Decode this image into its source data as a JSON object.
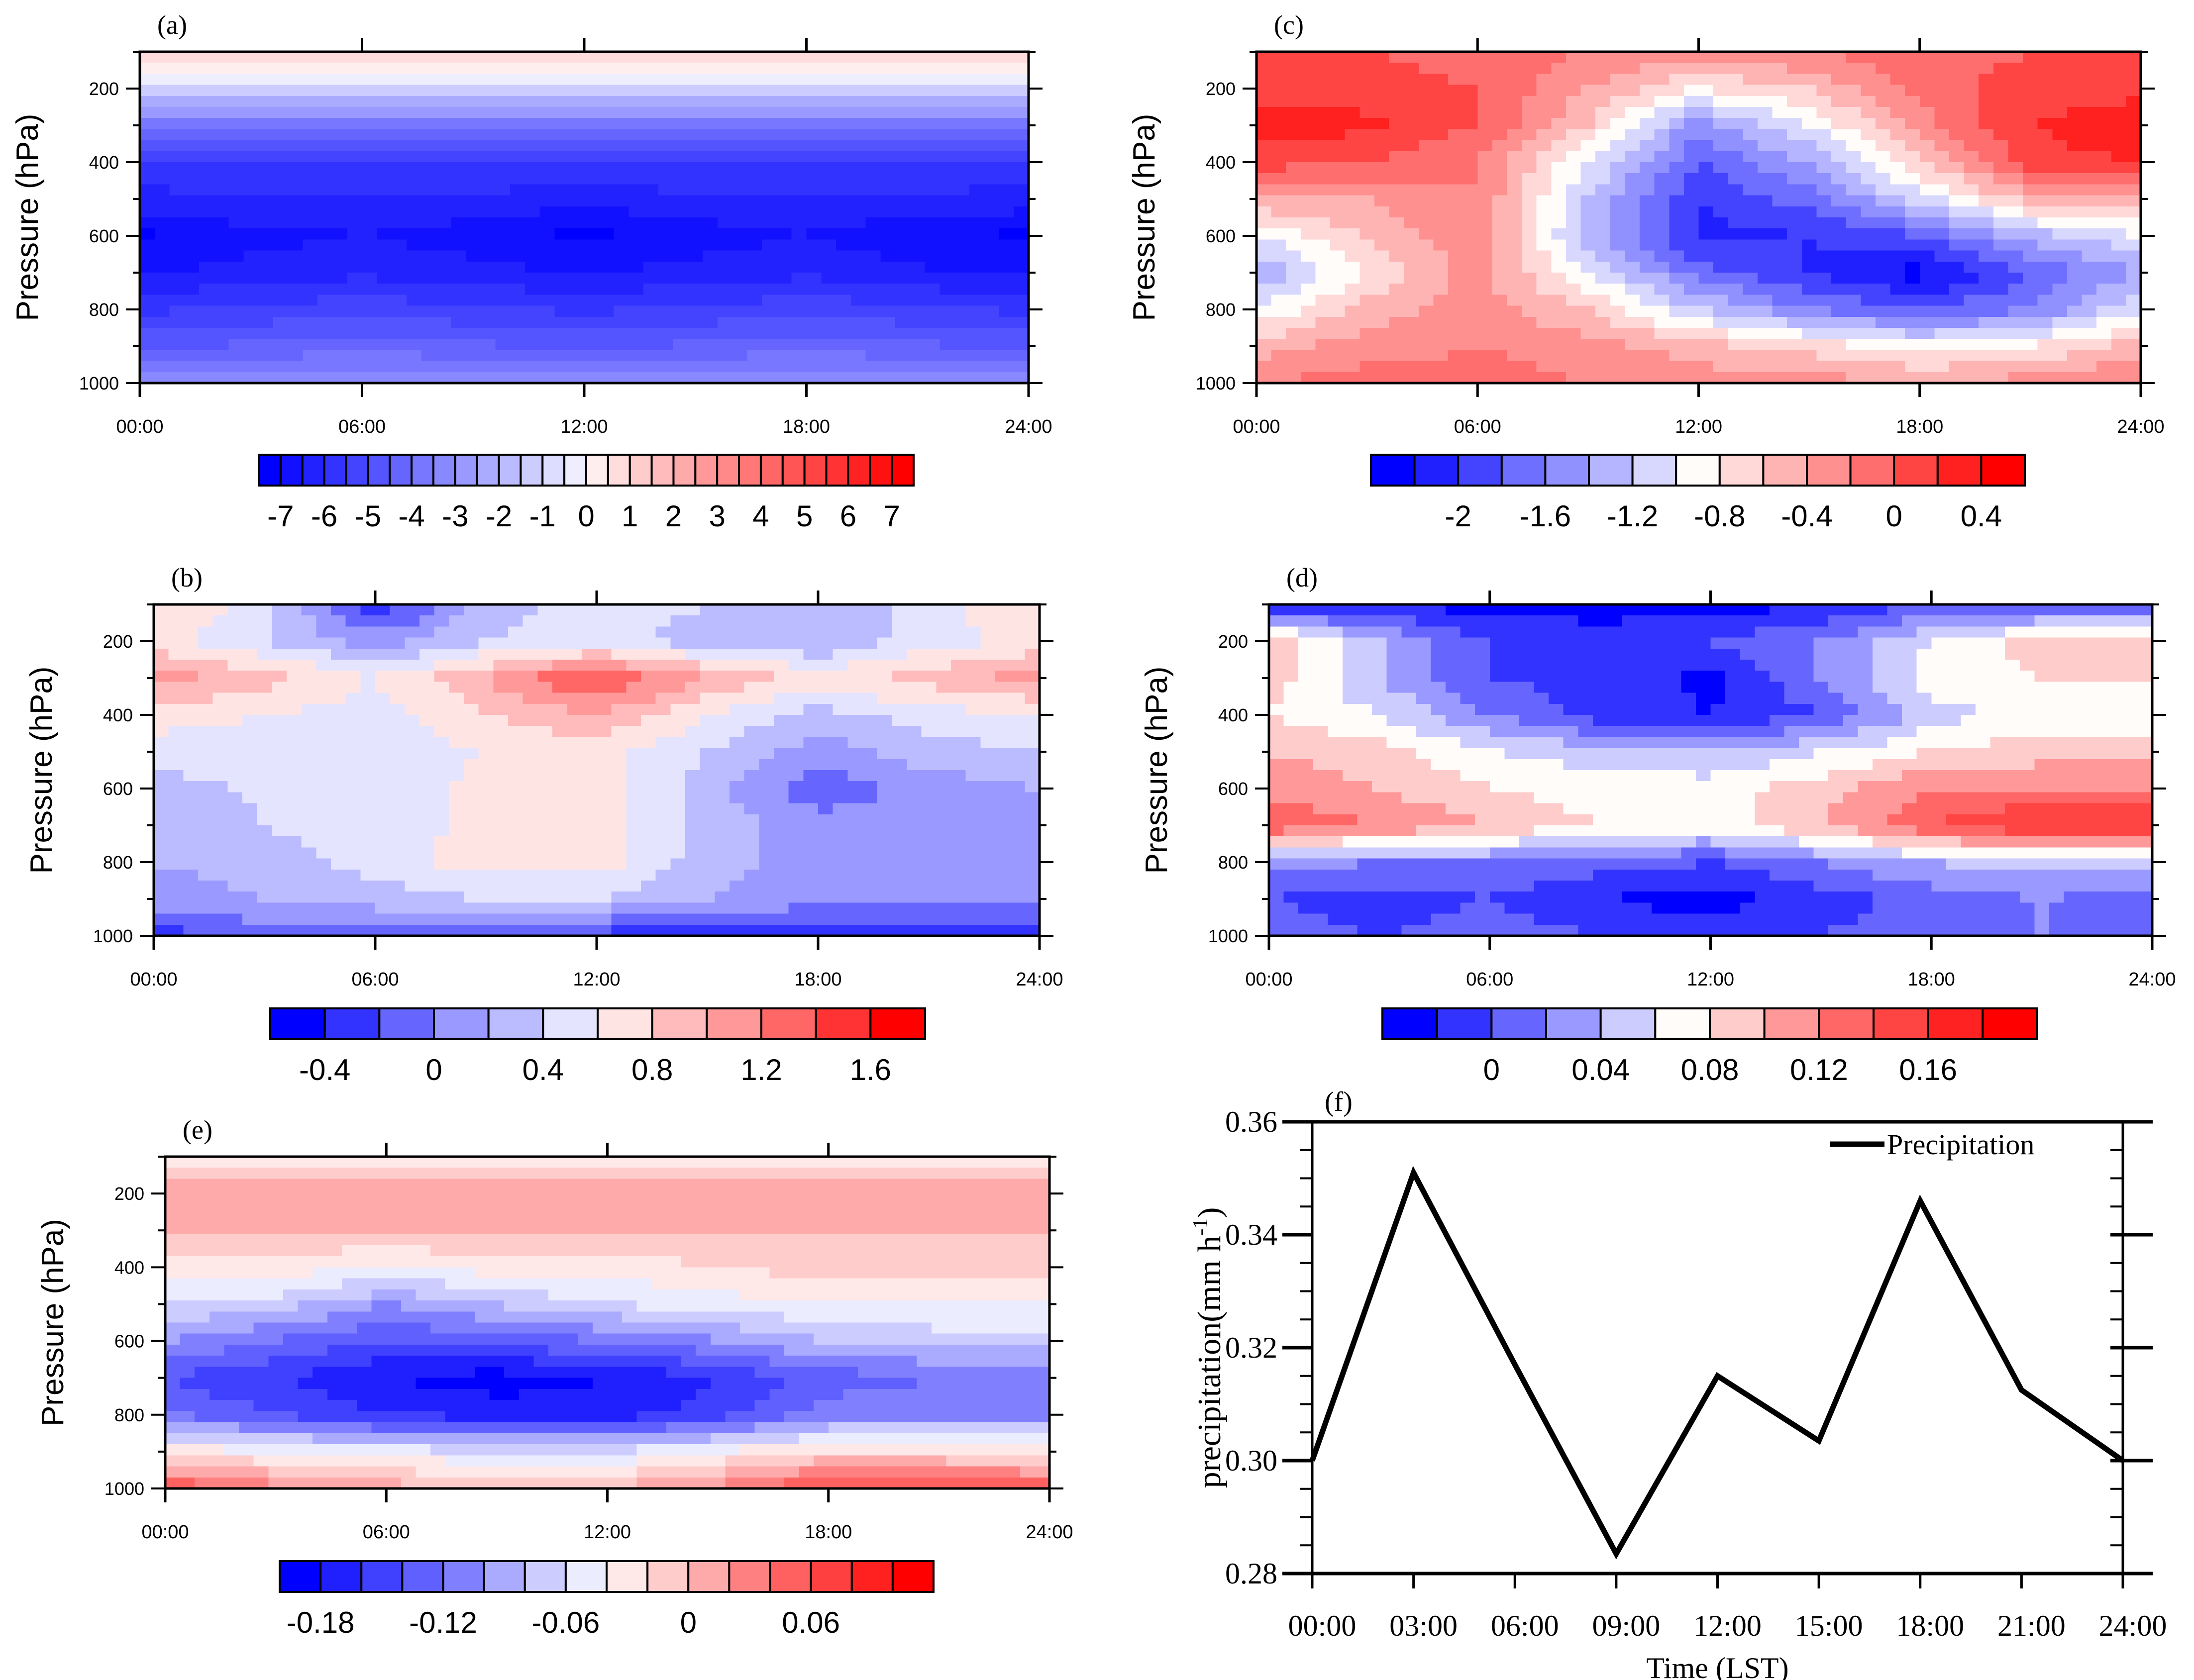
{
  "chart_data": [
    {
      "panel": "(a)",
      "type": "heatmap",
      "style": "filled-contour",
      "ylabel": "Pressure (hPa)",
      "xlabel": "",
      "x_hours": [
        0,
        3,
        6,
        9,
        12,
        15,
        18,
        21,
        24
      ],
      "y_pressure": [
        100,
        200,
        300,
        400,
        500,
        600,
        700,
        800,
        900,
        1000
      ],
      "ylim": [
        1000,
        100
      ],
      "xlim": [
        0,
        24
      ],
      "xtick_labels": [
        "00:00",
        "06:00",
        "12:00",
        "18:00",
        "24:00"
      ],
      "ytick_labels": [
        "200",
        "400",
        "600",
        "800",
        "1000"
      ],
      "values": [
        [
          1.0,
          1.0,
          1.0,
          1.0,
          1.0,
          1.0,
          1.0,
          1.0,
          1.0
        ],
        [
          -1.0,
          -1.0,
          -1.0,
          -1.0,
          -1.0,
          -1.0,
          -1.0,
          -1.0,
          -1.0
        ],
        [
          -4.0,
          -4.0,
          -4.0,
          -4.0,
          -4.0,
          -4.0,
          -4.0,
          -4.0,
          -4.0
        ],
        [
          -5.6,
          -5.5,
          -5.5,
          -5.5,
          -5.6,
          -5.5,
          -5.5,
          -5.5,
          -5.6
        ],
        [
          -6.2,
          -6.0,
          -6.0,
          -6.1,
          -6.3,
          -6.1,
          -6.0,
          -6.1,
          -6.2
        ],
        [
          -7.1,
          -6.7,
          -6.5,
          -6.8,
          -7.1,
          -6.8,
          -6.5,
          -6.9,
          -7.1
        ],
        [
          -6.6,
          -6.3,
          -6.1,
          -6.3,
          -6.6,
          -6.3,
          -6.1,
          -6.4,
          -6.6
        ],
        [
          -5.6,
          -5.4,
          -5.2,
          -5.4,
          -5.6,
          -5.4,
          -5.2,
          -5.4,
          -5.6
        ],
        [
          -4.6,
          -4.4,
          -4.2,
          -4.4,
          -4.6,
          -4.4,
          -4.2,
          -4.4,
          -4.6
        ],
        [
          -3.2,
          -3.1,
          -3.0,
          -3.1,
          -3.2,
          -3.1,
          -3.0,
          -3.1,
          -3.2
        ]
      ],
      "level_min": -7.5,
      "level_step": 0.5,
      "colors": [
        "#0000ff",
        "#1111ff",
        "#2222ff",
        "#3333ff",
        "#4444ff",
        "#5555ff",
        "#6666ff",
        "#7777ff",
        "#8888ff",
        "#9999ff",
        "#aaaaff",
        "#bbbbff",
        "#ccccff",
        "#ddddff",
        "#eeeeff",
        "#ffeeee",
        "#ffdddd",
        "#ffcccc",
        "#ffbbbb",
        "#ffaaaa",
        "#ff9999",
        "#ff8888",
        "#ff7777",
        "#ff6666",
        "#ff5555",
        "#ff4444",
        "#ff3333",
        "#ff2222",
        "#ff1111",
        "#ff0000"
      ],
      "colorbar_labels": [
        "-7",
        "-6",
        "-5",
        "-4",
        "-3",
        "-2",
        "-1",
        "0",
        "1",
        "2",
        "3",
        "4",
        "5",
        "6",
        "7"
      ]
    },
    {
      "panel": "(b)",
      "type": "heatmap",
      "style": "filled-contour",
      "ylabel": "Pressure (hPa)",
      "xlabel": "",
      "x_hours": [
        0,
        3,
        6,
        9,
        12,
        15,
        18,
        21,
        24
      ],
      "y_pressure": [
        100,
        200,
        300,
        400,
        500,
        600,
        700,
        800,
        900,
        1000
      ],
      "ylim": [
        1000,
        100
      ],
      "xlim": [
        0,
        24
      ],
      "xtick_labels": [
        "00:00",
        "06:00",
        "12:00",
        "18:00",
        "24:00"
      ],
      "ytick_labels": [
        "200",
        "400",
        "600",
        "800",
        "1000"
      ],
      "values": [
        [
          0.8,
          0.5,
          -0.4,
          0.3,
          0.5,
          0.4,
          0.2,
          0.5,
          0.8
        ],
        [
          0.7,
          0.4,
          0.1,
          0.4,
          0.5,
          0.3,
          0.2,
          0.5,
          0.7
        ],
        [
          1.1,
          0.9,
          0.6,
          1.0,
          1.45,
          1.0,
          0.7,
          0.9,
          1.1
        ],
        [
          0.7,
          0.6,
          0.5,
          0.8,
          1.0,
          0.6,
          0.3,
          0.5,
          0.6
        ],
        [
          0.5,
          0.5,
          0.5,
          0.6,
          0.7,
          0.4,
          0.1,
          0.3,
          0.4
        ],
        [
          0.3,
          0.45,
          0.5,
          0.65,
          0.7,
          0.3,
          -0.15,
          0.1,
          0.2
        ],
        [
          0.2,
          0.4,
          0.5,
          0.65,
          0.7,
          0.3,
          0.1,
          0.1,
          0.1
        ],
        [
          0.2,
          0.3,
          0.5,
          0.7,
          0.7,
          0.3,
          0.1,
          0.1,
          0.1
        ],
        [
          0.1,
          0.2,
          0.3,
          0.4,
          0.4,
          0.2,
          0.1,
          0.1,
          0.1
        ],
        [
          -0.3,
          -0.1,
          -0.1,
          -0.2,
          -0.3,
          -0.3,
          -0.4,
          -0.4,
          -0.4
        ]
      ],
      "level_min": -0.6,
      "level_step": 0.2,
      "colors": [
        "#0000ff",
        "#3333ff",
        "#6666ff",
        "#9999ff",
        "#bbbbff",
        "#e4e4ff",
        "#ffe4e4",
        "#ffbbbb",
        "#ff9999",
        "#ff6666",
        "#ff3333",
        "#ff0000"
      ],
      "colorbar_labels": [
        "-0.4",
        "0",
        "0.4",
        "0.8",
        "1.2",
        "1.6"
      ]
    },
    {
      "panel": "(c)",
      "type": "heatmap",
      "style": "filled-contour",
      "ylabel": "Pressure (hPa)",
      "xlabel": "",
      "x_hours": [
        0,
        3,
        6,
        9,
        12,
        15,
        18,
        21,
        24
      ],
      "y_pressure": [
        100,
        200,
        300,
        400,
        500,
        600,
        700,
        800,
        900,
        1000
      ],
      "ylim": [
        1000,
        100
      ],
      "xlim": [
        0,
        24
      ],
      "xtick_labels": [
        "00:00",
        "06:00",
        "12:00",
        "18:00",
        "24:00"
      ],
      "ytick_labels": [
        "200",
        "400",
        "600",
        "800",
        "1000"
      ],
      "values": [
        [
          0.0,
          0.0,
          -0.1,
          -0.2,
          -0.3,
          -0.2,
          -0.1,
          0.0,
          0.0
        ],
        [
          0.1,
          0.1,
          0.0,
          -0.4,
          -0.8,
          -0.6,
          -0.1,
          0.1,
          0.1
        ],
        [
          0.3,
          0.25,
          0.0,
          -0.6,
          -1.5,
          -1.0,
          -0.3,
          0.2,
          0.4
        ],
        [
          0.1,
          0.0,
          -0.2,
          -1.0,
          -1.8,
          -1.4,
          -0.6,
          0.1,
          0.2
        ],
        [
          -0.4,
          -0.4,
          -0.2,
          -1.2,
          -2.0,
          -1.7,
          -1.1,
          -0.5,
          -0.4
        ],
        [
          -1.0,
          -0.6,
          -0.2,
          -1.3,
          -2.05,
          -2.0,
          -1.8,
          -1.3,
          -1.0
        ],
        [
          -1.4,
          -0.8,
          -0.3,
          -1.0,
          -1.7,
          -2.0,
          -2.3,
          -1.8,
          -1.4
        ],
        [
          -1.0,
          -0.5,
          -0.3,
          -0.6,
          -1.2,
          -1.6,
          -1.8,
          -1.6,
          -1.0
        ],
        [
          -0.5,
          -0.3,
          -0.2,
          -0.3,
          -0.5,
          -0.7,
          -0.9,
          -0.8,
          -0.5
        ],
        [
          -0.2,
          -0.1,
          -0.1,
          -0.2,
          -0.3,
          -0.3,
          -0.4,
          -0.3,
          -0.2
        ]
      ],
      "level_min": -2.4,
      "level_step": 0.2,
      "colors": [
        "#0000ff",
        "#2020ff",
        "#4444ff",
        "#6e6eff",
        "#9090ff",
        "#b4b4ff",
        "#d8d8ff",
        "#fffcfa",
        "#ffd8d8",
        "#ffb4b4",
        "#ff9090",
        "#ff6e6e",
        "#ff4444",
        "#ff2020",
        "#ff0000"
      ],
      "colorbar_labels": [
        "-2",
        "-1.6",
        "-1.2",
        "-0.8",
        "-0.4",
        "0",
        "0.4"
      ]
    },
    {
      "panel": "(d)",
      "type": "heatmap",
      "style": "filled-contour",
      "ylabel": "Pressure (hPa)",
      "xlabel": "",
      "x_hours": [
        0,
        3,
        6,
        9,
        12,
        15,
        18,
        21,
        24
      ],
      "y_pressure": [
        100,
        200,
        300,
        400,
        500,
        600,
        700,
        800,
        900,
        1000
      ],
      "ylim": [
        1000,
        100
      ],
      "xlim": [
        0,
        24
      ],
      "xtick_labels": [
        "00:00",
        "06:00",
        "12:00",
        "18:00",
        "24:00"
      ],
      "ytick_labels": [
        "200",
        "400",
        "600",
        "800",
        "1000"
      ],
      "values": [
        [
          -0.02,
          -0.02,
          -0.03,
          -0.03,
          -0.03,
          -0.02,
          0.0,
          0.0,
          0.0
        ],
        [
          0.1,
          0.04,
          0.0,
          -0.01,
          0.0,
          0.02,
          0.06,
          0.09,
          0.09
        ],
        [
          0.09,
          0.04,
          0.0,
          -0.01,
          -0.025,
          0.02,
          0.07,
          0.08,
          0.08
        ],
        [
          0.08,
          0.06,
          0.02,
          -0.01,
          -0.02,
          0.0,
          0.05,
          0.07,
          0.07
        ],
        [
          0.1,
          0.09,
          0.06,
          0.05,
          0.04,
          0.06,
          0.08,
          0.09,
          0.09
        ],
        [
          0.11,
          0.1,
          0.08,
          0.07,
          0.07,
          0.09,
          0.12,
          0.12,
          0.12
        ],
        [
          0.14,
          0.12,
          0.1,
          0.08,
          0.07,
          0.1,
          0.14,
          0.165,
          0.16
        ],
        [
          0.03,
          0.02,
          0.02,
          0.01,
          0.0,
          0.02,
          0.04,
          0.05,
          0.05
        ],
        [
          0.0,
          -0.01,
          0.0,
          -0.02,
          -0.03,
          -0.01,
          0.01,
          0.02,
          0.01
        ],
        [
          0.01,
          0.0,
          0.01,
          0.0,
          -0.01,
          0.0,
          0.01,
          0.02,
          0.02
        ]
      ],
      "level_min": -0.04,
      "level_step": 0.02,
      "colors": [
        "#0000ff",
        "#3333ff",
        "#6666ff",
        "#9999ff",
        "#ccccff",
        "#fffcfa",
        "#ffcccc",
        "#ff9999",
        "#ff6666",
        "#ff4444",
        "#ff2222",
        "#ff0000"
      ],
      "colorbar_labels": [
        "0",
        "0.04",
        "0.08",
        "0.12",
        "0.16"
      ]
    },
    {
      "panel": "(e)",
      "type": "heatmap",
      "style": "filled-contour",
      "ylabel": "Pressure (hPa)",
      "xlabel": "",
      "x_hours": [
        0,
        3,
        6,
        9,
        12,
        15,
        18,
        21,
        24
      ],
      "y_pressure": [
        100,
        200,
        300,
        400,
        500,
        600,
        700,
        800,
        900,
        1000
      ],
      "ylim": [
        1000,
        100
      ],
      "xlim": [
        0,
        24
      ],
      "xtick_labels": [
        "00:00",
        "06:00",
        "12:00",
        "18:00",
        "24:00"
      ],
      "ytick_labels": [
        "200",
        "400",
        "600",
        "800",
        "1000"
      ],
      "values": [
        [
          -0.03,
          -0.03,
          -0.03,
          -0.03,
          -0.03,
          -0.03,
          -0.03,
          -0.03,
          -0.03
        ],
        [
          0.01,
          0.01,
          0.01,
          0.01,
          0.01,
          0.01,
          0.01,
          0.01,
          0.01
        ],
        [
          0.0,
          0.0,
          0.0,
          0.0,
          0.0,
          0.0,
          0.0,
          0.0,
          0.0
        ],
        [
          -0.03,
          -0.03,
          -0.04,
          -0.03,
          -0.03,
          -0.02,
          -0.01,
          -0.01,
          -0.01
        ],
        [
          -0.06,
          -0.07,
          -0.1,
          -0.08,
          -0.06,
          -0.05,
          -0.04,
          -0.04,
          -0.04
        ],
        [
          -0.1,
          -0.12,
          -0.14,
          -0.13,
          -0.12,
          -0.1,
          -0.08,
          -0.07,
          -0.07
        ],
        [
          -0.14,
          -0.16,
          -0.18,
          -0.19,
          -0.18,
          -0.16,
          -0.13,
          -0.12,
          -0.12
        ],
        [
          -0.12,
          -0.14,
          -0.16,
          -0.17,
          -0.17,
          -0.15,
          -0.11,
          -0.11,
          -0.11
        ],
        [
          -0.03,
          -0.04,
          -0.05,
          -0.06,
          -0.06,
          -0.04,
          -0.02,
          -0.02,
          -0.02
        ],
        [
          0.06,
          0.03,
          0.01,
          0.0,
          0.0,
          0.03,
          0.07,
          0.06,
          0.05
        ]
      ],
      "level_min": -0.2,
      "level_step": 0.02,
      "colors": [
        "#0000ff",
        "#2020ff",
        "#4040ff",
        "#6060ff",
        "#8080ff",
        "#aaaaff",
        "#ccccff",
        "#ececff",
        "#ffe8e8",
        "#ffcccc",
        "#ffaaaa",
        "#ff8080",
        "#ff6060",
        "#ff4040",
        "#ff2020",
        "#ff0000"
      ],
      "colorbar_labels": [
        "-0.18",
        "-0.12",
        "-0.06",
        "0",
        "0.06"
      ]
    },
    {
      "panel": "(f)",
      "type": "line",
      "xlabel": "Time (LST)",
      "ylabel": "precipitation(mm h",
      "ylabel_superscript": "-1",
      "ylabel_suffix": ")",
      "x_hours": [
        0,
        3,
        6,
        9,
        12,
        15,
        18,
        21,
        24
      ],
      "xtick_labels": [
        "00:00",
        "03:00",
        "06:00",
        "09:00",
        "12:00",
        "15:00",
        "18:00",
        "21:00",
        "24:00"
      ],
      "ylim": [
        0.28,
        0.36
      ],
      "xlim": [
        0,
        24
      ],
      "ytick_values": [
        0.28,
        0.3,
        0.32,
        0.34,
        0.36
      ],
      "ytick_labels": [
        "0.28",
        "0.30",
        "0.32",
        "0.34",
        "0.36"
      ],
      "series": [
        {
          "name": "Precipitation",
          "color": "#000000",
          "values": [
            0.3,
            0.351,
            0.317,
            0.2835,
            0.315,
            0.3035,
            0.346,
            0.3125,
            0.3
          ]
        }
      ],
      "legend": "top-right"
    }
  ]
}
